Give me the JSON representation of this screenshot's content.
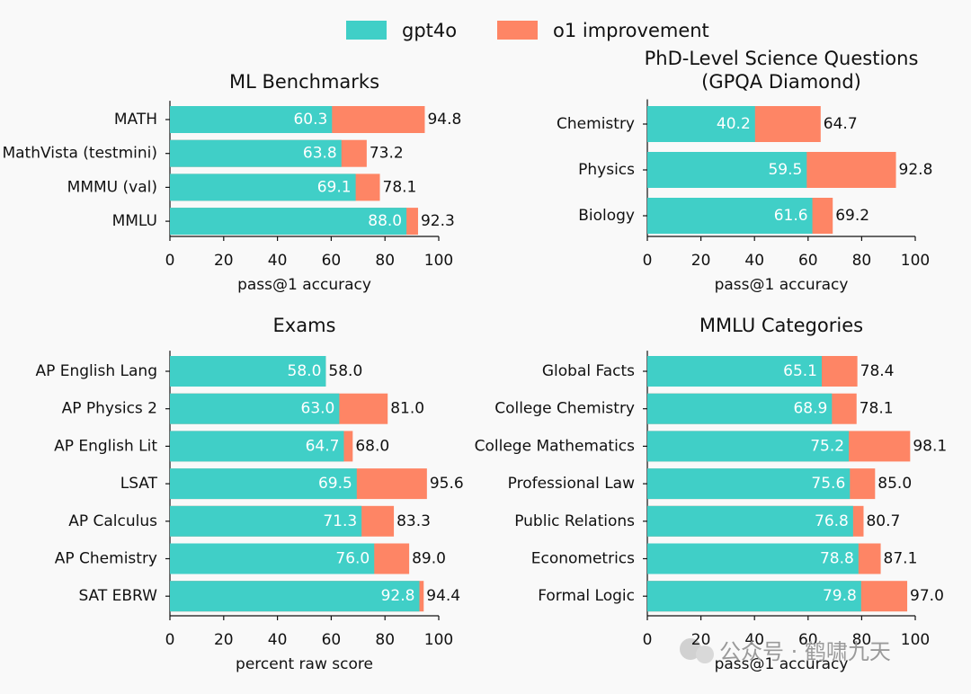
{
  "legend": [
    {
      "name": "gpt4o",
      "color": "#40cfc7"
    },
    {
      "name": "o1 improvement",
      "color": "#fe8565"
    }
  ],
  "watermark": "公众号 · 鹤啸九天",
  "chart_data": [
    {
      "type": "barh",
      "title": [
        "ML Benchmarks"
      ],
      "x_label": "pass@1 accuracy",
      "categories": [
        "MATH",
        "MathVista (testmini)",
        "MMMU (val)",
        "MMLU"
      ],
      "series": [
        {
          "values": [
            60.3,
            63.8,
            69.1,
            88.0
          ],
          "value_labels": [
            "60.3",
            "63.8",
            "69.1",
            "88.0"
          ]
        },
        {
          "values": [
            94.8,
            73.2,
            78.1,
            92.3
          ],
          "value_labels": [
            "94.8",
            "73.2",
            "78.1",
            "92.3"
          ]
        }
      ],
      "xlim": [
        0,
        100
      ],
      "xticks": [
        0,
        20,
        40,
        60,
        80,
        100
      ]
    },
    {
      "type": "barh",
      "title": [
        "PhD-Level Science Questions",
        "(GPQA Diamond)"
      ],
      "x_label": "pass@1 accuracy",
      "categories": [
        "Chemistry",
        "Physics",
        "Biology"
      ],
      "series": [
        {
          "values": [
            40.2,
            59.5,
            61.6
          ],
          "value_labels": [
            "40.2",
            "59.5",
            "61.6"
          ]
        },
        {
          "values": [
            64.7,
            92.8,
            69.2
          ],
          "value_labels": [
            "64.7",
            "92.8",
            "69.2"
          ]
        }
      ],
      "xlim": [
        0,
        100
      ],
      "xticks": [
        0,
        20,
        40,
        60,
        80,
        100
      ]
    },
    {
      "type": "barh",
      "title": [
        "Exams"
      ],
      "x_label": "percent raw score",
      "categories": [
        "AP English Lang",
        "AP Physics 2",
        "AP English Lit",
        "LSAT",
        "AP Calculus",
        "AP Chemistry",
        "SAT EBRW"
      ],
      "series": [
        {
          "values": [
            58.0,
            63.0,
            64.7,
            69.5,
            71.3,
            76.0,
            92.8
          ],
          "value_labels": [
            "58.0",
            "63.0",
            "64.7",
            "69.5",
            "71.3",
            "76.0",
            "92.8"
          ]
        },
        {
          "values": [
            58.0,
            81.0,
            68.0,
            95.6,
            83.3,
            89.0,
            94.4
          ],
          "value_labels": [
            "58.0",
            "81.0",
            "68.0",
            "95.6",
            "83.3",
            "89.0",
            "94.4"
          ]
        }
      ],
      "xlim": [
        0,
        100
      ],
      "xticks": [
        0,
        20,
        40,
        60,
        80,
        100
      ]
    },
    {
      "type": "barh",
      "title": [
        "MMLU Categories"
      ],
      "x_label": "pass@1 accuracy",
      "categories": [
        "Global Facts",
        "College Chemistry",
        "College Mathematics",
        "Professional Law",
        "Public Relations",
        "Econometrics",
        "Formal Logic"
      ],
      "series": [
        {
          "values": [
            65.1,
            68.9,
            75.2,
            75.6,
            76.8,
            78.8,
            79.8
          ],
          "value_labels": [
            "65.1",
            "68.9",
            "75.2",
            "75.6",
            "76.8",
            "78.8",
            "79.8"
          ]
        },
        {
          "values": [
            78.4,
            78.1,
            98.1,
            85.0,
            80.7,
            87.1,
            97.0
          ],
          "value_labels": [
            "78.4",
            "78.1",
            "98.1",
            "85.0",
            "80.7",
            "87.1",
            "97.0"
          ]
        }
      ],
      "xlim": [
        0,
        100
      ],
      "xticks": [
        0,
        20,
        40,
        60,
        80,
        100
      ]
    }
  ]
}
